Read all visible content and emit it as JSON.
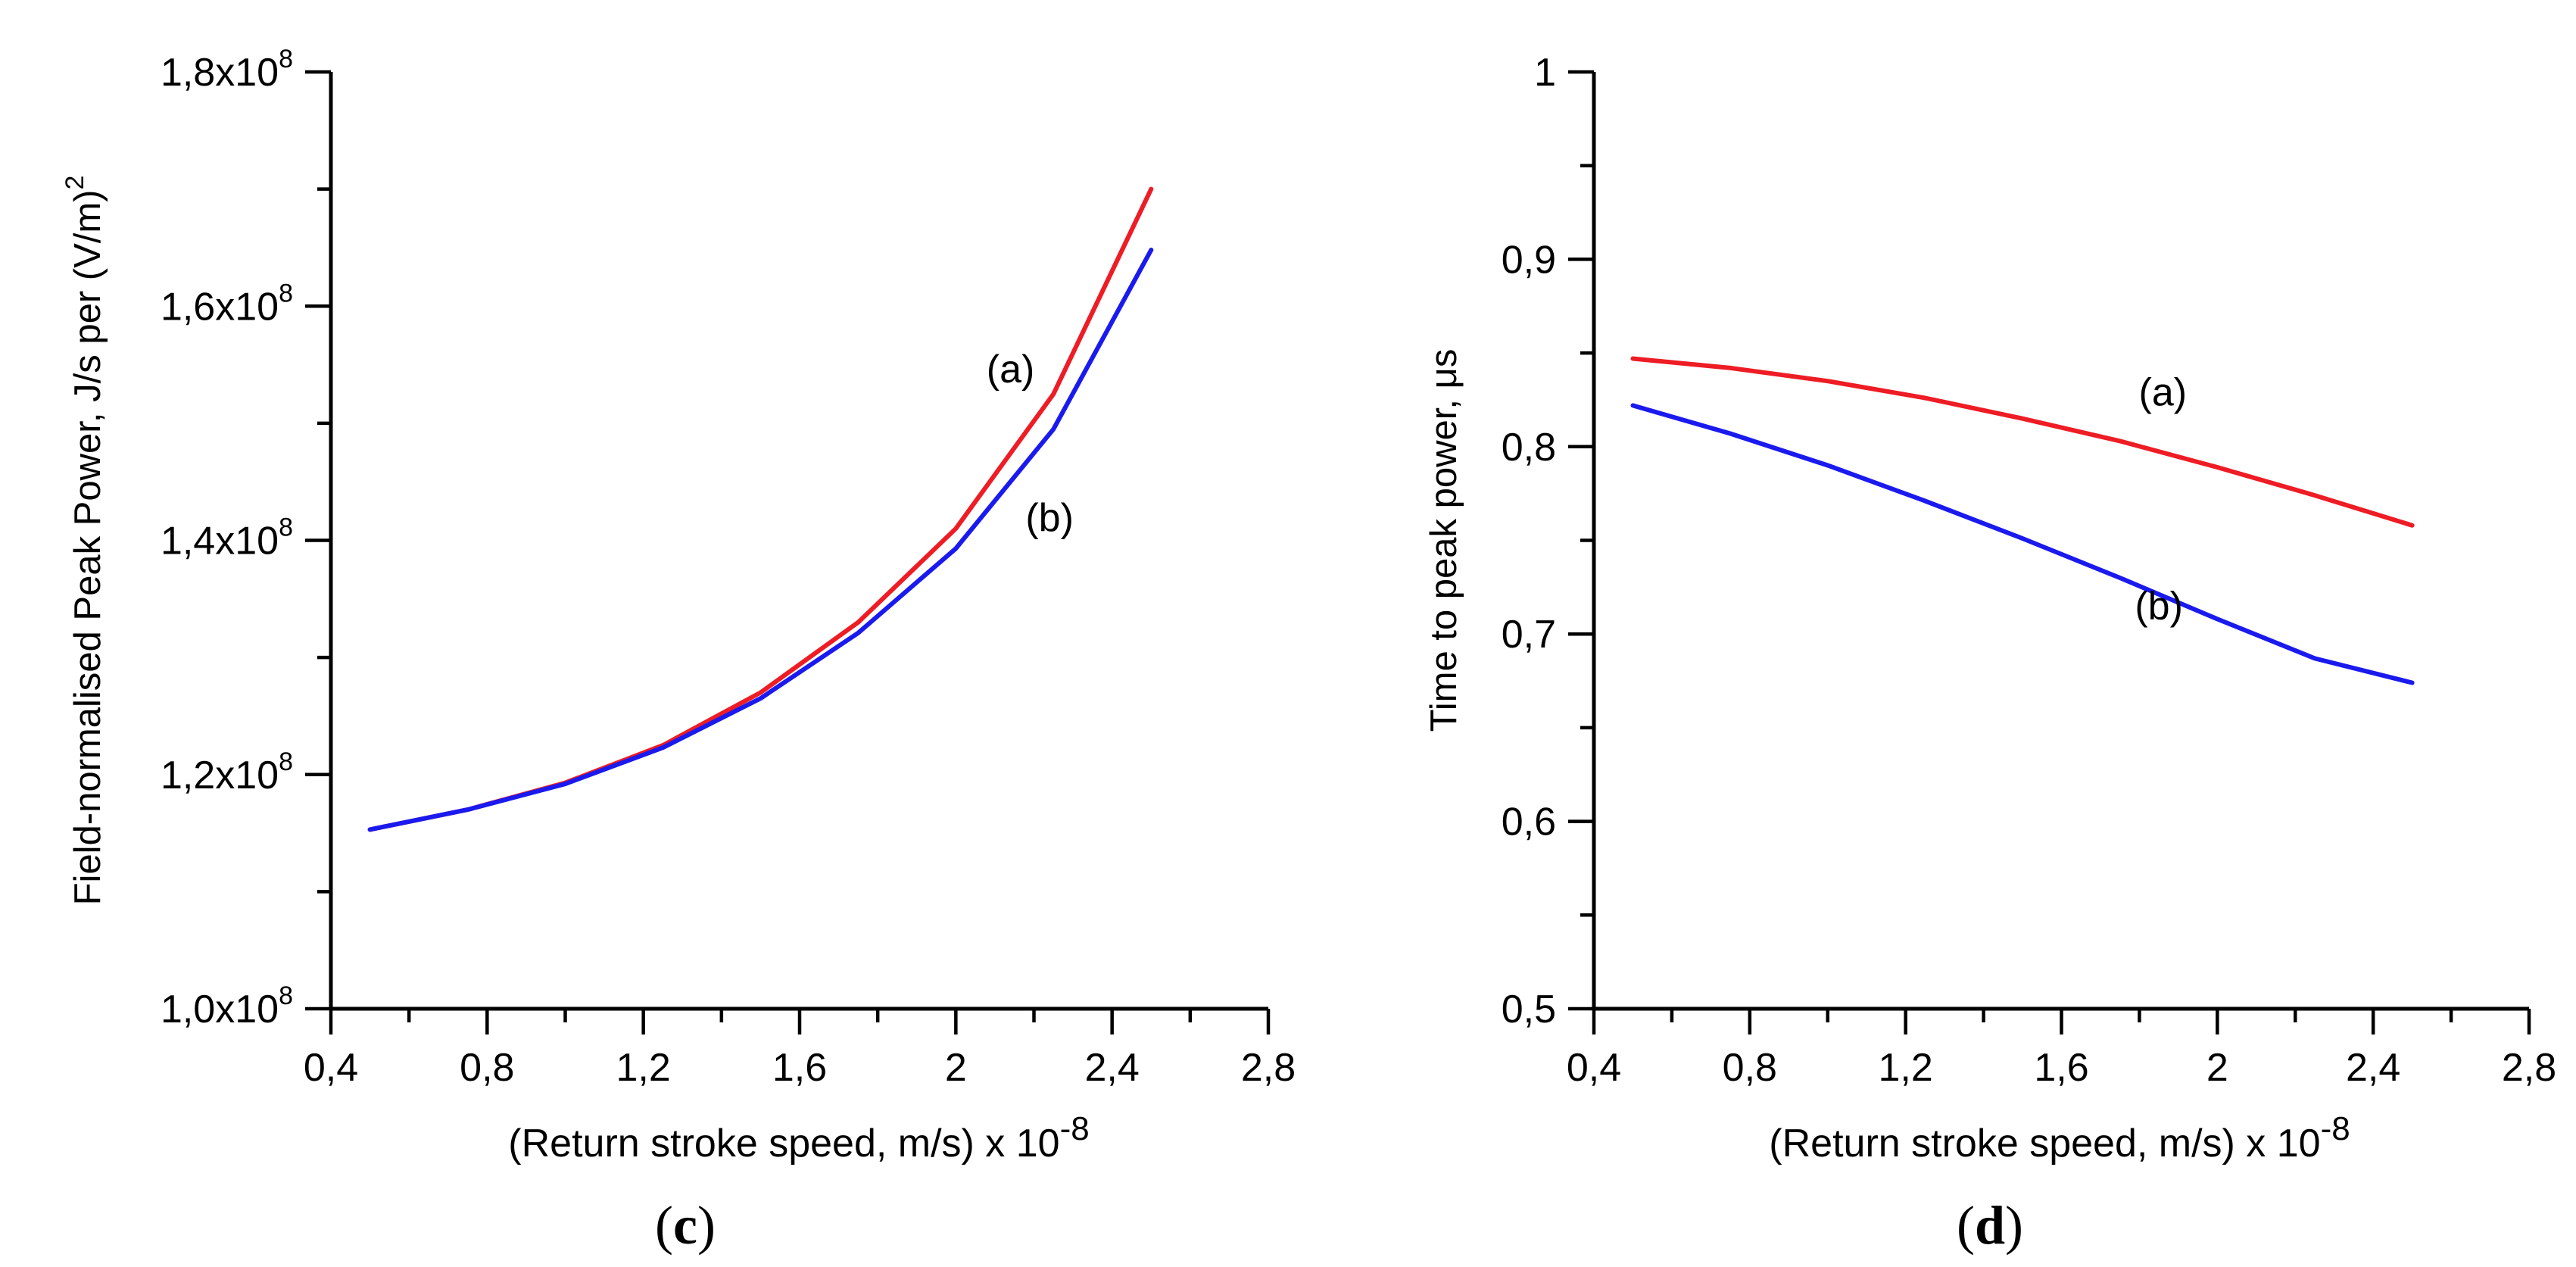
{
  "chart_data": [
    {
      "type": "line",
      "panel_label": "(c)",
      "xlabel": "(Return stroke speed, m/s) x 10",
      "xlabel_exp": "-8",
      "ylabel": "Field-normalised Peak Power, J/s per (V/m)",
      "ylabel_exp": "2",
      "xlim": [
        0.4,
        2.8
      ],
      "ylim": [
        100000000,
        180000000
      ],
      "x_ticks": [
        {
          "value": 0.4,
          "label": "0,4"
        },
        {
          "value": 0.8,
          "label": "0,8"
        },
        {
          "value": 1.2,
          "label": "1,2"
        },
        {
          "value": 1.6,
          "label": "1,6"
        },
        {
          "value": 2.0,
          "label": "2"
        },
        {
          "value": 2.4,
          "label": "2,4"
        },
        {
          "value": 2.8,
          "label": "2,8"
        }
      ],
      "y_ticks": [
        {
          "value": 100000000,
          "mantissa": "1,0x10",
          "exp": "8"
        },
        {
          "value": 120000000,
          "mantissa": "1,2x10",
          "exp": "8"
        },
        {
          "value": 140000000,
          "mantissa": "1,4x10",
          "exp": "8"
        },
        {
          "value": 160000000,
          "mantissa": "1,6x10",
          "exp": "8"
        },
        {
          "value": 180000000,
          "mantissa": "1,8x10",
          "exp": "8"
        }
      ],
      "series": [
        {
          "name": "(a)",
          "color": "#ee1c24",
          "x": [
            0.5,
            0.75,
            1.0,
            1.25,
            1.5,
            1.75,
            2.0,
            2.25,
            2.5
          ],
          "y": [
            115300000,
            117000000,
            119300000,
            122500000,
            127000000,
            133000000,
            141000000,
            152500000,
            170000000
          ],
          "label_at": {
            "x": 2.14,
            "y": 153500000
          }
        },
        {
          "name": "(b)",
          "color": "#1a1aee",
          "x": [
            0.5,
            0.75,
            1.0,
            1.25,
            1.5,
            1.75,
            2.0,
            2.25,
            2.5
          ],
          "y": [
            115300000,
            117000000,
            119200000,
            122300000,
            126500000,
            132100000,
            139300000,
            149500000,
            164800000
          ],
          "label_at": {
            "x": 2.24,
            "y": 140800000
          }
        }
      ]
    },
    {
      "type": "line",
      "panel_label": "(d)",
      "xlabel": "(Return stroke speed, m/s) x 10",
      "xlabel_exp": "-8",
      "ylabel": "Time to peak power,  μs",
      "xlim": [
        0.4,
        2.8
      ],
      "ylim": [
        0.5,
        1.0
      ],
      "x_ticks": [
        {
          "value": 0.4,
          "label": "0,4"
        },
        {
          "value": 0.8,
          "label": "0,8"
        },
        {
          "value": 1.2,
          "label": "1,2"
        },
        {
          "value": 1.6,
          "label": "1,6"
        },
        {
          "value": 2.0,
          "label": "2"
        },
        {
          "value": 2.4,
          "label": "2,4"
        },
        {
          "value": 2.8,
          "label": "2,8"
        }
      ],
      "y_ticks": [
        {
          "value": 0.5,
          "label": "0,5"
        },
        {
          "value": 0.6,
          "label": "0,6"
        },
        {
          "value": 0.7,
          "label": "0,7"
        },
        {
          "value": 0.8,
          "label": "0,8"
        },
        {
          "value": 0.9,
          "label": "0,9"
        },
        {
          "value": 1.0,
          "label": "1"
        }
      ],
      "series": [
        {
          "name": "(a)",
          "color": "#ee1c24",
          "x": [
            0.5,
            0.75,
            1.0,
            1.25,
            1.5,
            1.75,
            2.0,
            2.25,
            2.5
          ],
          "y": [
            0.847,
            0.842,
            0.835,
            0.826,
            0.815,
            0.803,
            0.789,
            0.774,
            0.758
          ],
          "label_at": {
            "x": 1.86,
            "y": 0.822
          }
        },
        {
          "name": "(b)",
          "color": "#1a1aee",
          "x": [
            0.5,
            0.75,
            1.0,
            1.25,
            1.5,
            1.75,
            2.0,
            2.25,
            2.5
          ],
          "y": [
            0.822,
            0.807,
            0.79,
            0.771,
            0.751,
            0.73,
            0.708,
            0.687,
            0.674
          ],
          "label_at": {
            "x": 1.85,
            "y": 0.708
          }
        }
      ]
    }
  ]
}
